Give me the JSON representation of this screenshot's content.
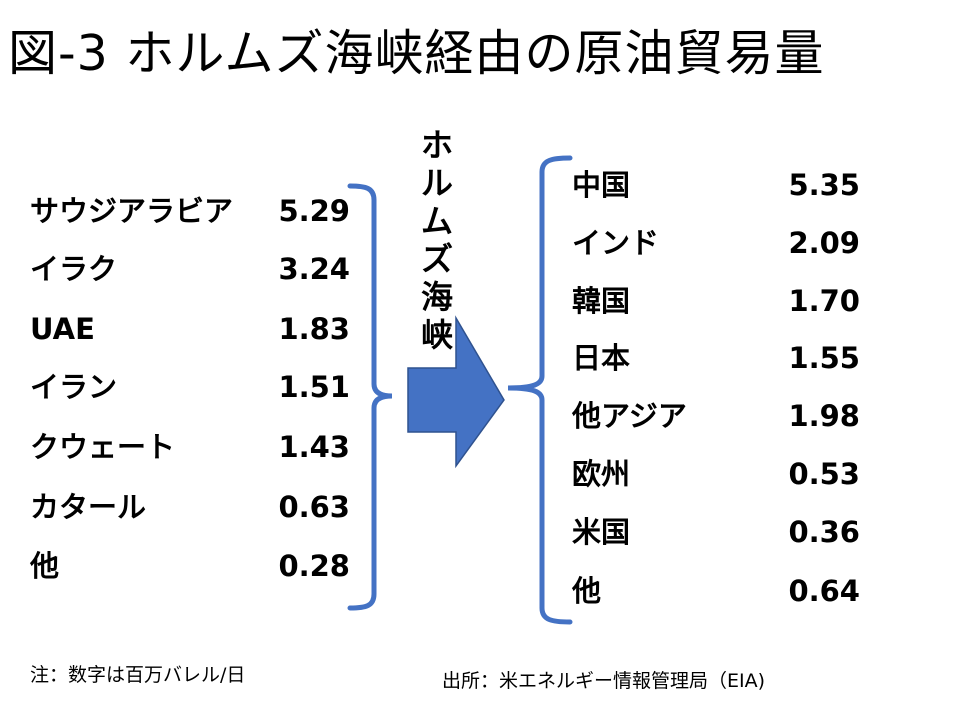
{
  "title": "図-3 ホルムズ海峡経由の原油貿易量",
  "strait": "ホルムズ海峡",
  "exporters": [
    {
      "label": "サウジアラビア",
      "value": "5.29"
    },
    {
      "label": "イラク",
      "value": "3.24"
    },
    {
      "label": "UAE",
      "value": "1.83"
    },
    {
      "label": "イラン",
      "value": "1.51"
    },
    {
      "label": "クウェート",
      "value": "1.43"
    },
    {
      "label": "カタール",
      "value": "0.63"
    },
    {
      "label": "他",
      "value": "0.28"
    }
  ],
  "importers": [
    {
      "label": "中国",
      "value": "5.35"
    },
    {
      "label": "インド",
      "value": "2.09"
    },
    {
      "label": "韓国",
      "value": "1.70"
    },
    {
      "label": "日本",
      "value": "1.55"
    },
    {
      "label": "他アジア",
      "value": "1.98"
    },
    {
      "label": "欧州",
      "value": "0.53"
    },
    {
      "label": "米国",
      "value": "0.36"
    },
    {
      "label": "他",
      "value": "0.64"
    }
  ],
  "note": "注：数字は百万バレル/日",
  "source": "出所：米エネルギー情報管理局（EIA)",
  "colors": {
    "bracket": "#4472C4",
    "arrow_fill": "#4472C4",
    "arrow_stroke": "#2F528F"
  }
}
